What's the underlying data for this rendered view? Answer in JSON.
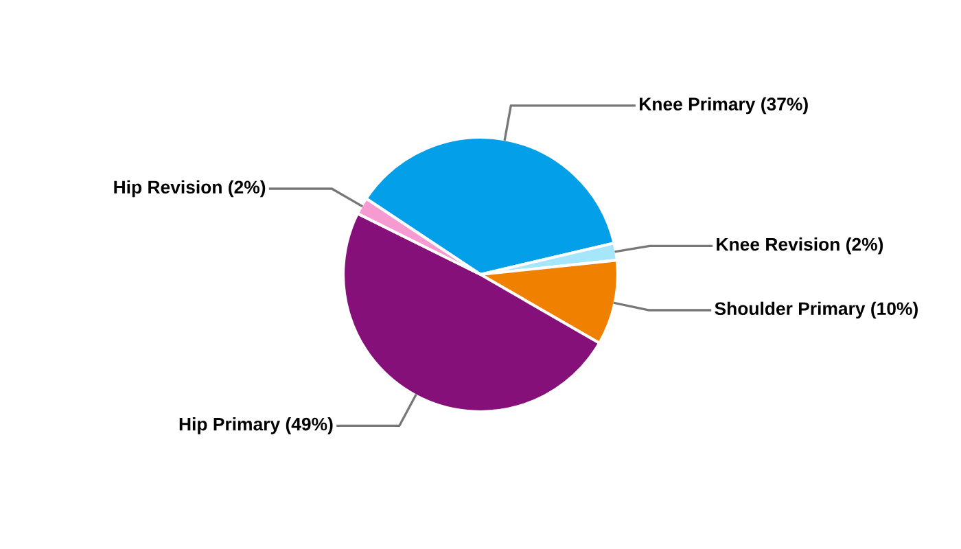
{
  "chart_data": {
    "type": "pie",
    "categories": [
      "Knee Primary",
      "Knee Revision",
      "Shoulder Primary",
      "Hip Primary",
      "Hip Revision"
    ],
    "values": [
      37,
      2,
      10,
      49,
      2
    ],
    "value_labels": [
      "(37%)",
      "(2%)",
      "(10%)",
      "(49%)",
      "(2%)"
    ],
    "colors": [
      "#039fe8",
      "#a6e6fb",
      "#f08100",
      "#861079",
      "#f59bd2"
    ],
    "legend": false
  }
}
